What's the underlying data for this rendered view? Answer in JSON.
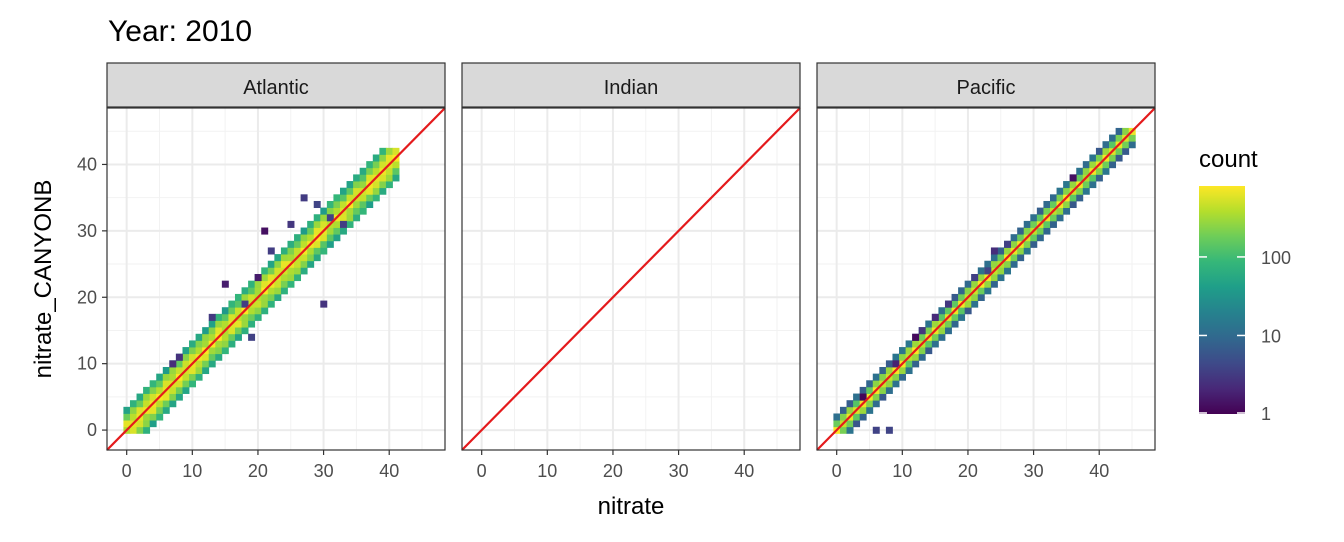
{
  "chart_data": {
    "type": "heatmap",
    "title": "Year: 2010",
    "xlabel": "nitrate",
    "ylabel": "nitrate_CANYONB",
    "xlim": [
      -3,
      48.5
    ],
    "ylim": [
      -3,
      48.5
    ],
    "xticks": [
      0,
      10,
      20,
      30,
      40
    ],
    "yticks": [
      0,
      10,
      20,
      30,
      40
    ],
    "reference_line": {
      "slope": 1,
      "intercept": 0,
      "color": "#e41a1c"
    },
    "grid": true,
    "facets": [
      {
        "name": "Atlantic",
        "bin_range": [
          -0.5,
          41.5
        ],
        "spread": 1.4,
        "outliers": [
          [
            27,
            35
          ],
          [
            29,
            34
          ],
          [
            22,
            27
          ],
          [
            20,
            23
          ],
          [
            15,
            22
          ],
          [
            18,
            19
          ],
          [
            21,
            30
          ],
          [
            31,
            32
          ],
          [
            33,
            31
          ],
          [
            25,
            31
          ],
          [
            13,
            17
          ],
          [
            8,
            11
          ],
          [
            7,
            10
          ],
          [
            19,
            14
          ],
          [
            30,
            19
          ]
        ]
      },
      {
        "name": "Indian",
        "bin_range": null,
        "spread": 0,
        "outliers": []
      },
      {
        "name": "Pacific",
        "bin_range": [
          -0.5,
          45
        ],
        "spread": 0.7,
        "outliers": [
          [
            6,
            0
          ],
          [
            8,
            0
          ],
          [
            24,
            27
          ],
          [
            21,
            23
          ],
          [
            23,
            24
          ],
          [
            17,
            19
          ],
          [
            15,
            17
          ],
          [
            13,
            15
          ],
          [
            12,
            14
          ],
          [
            9,
            10
          ],
          [
            4,
            5
          ],
          [
            26,
            28
          ],
          [
            36,
            38
          ]
        ]
      }
    ]
  },
  "legend": {
    "title": "count",
    "scale": "log10",
    "breaks": [
      {
        "value": 1,
        "label": "1"
      },
      {
        "value": 10,
        "label": "10"
      },
      {
        "value": 100,
        "label": "100"
      }
    ],
    "max": 800,
    "colors": [
      "#440154",
      "#482878",
      "#3E4A89",
      "#31688E",
      "#26828E",
      "#1F9E89",
      "#35B779",
      "#6DCD59",
      "#B4DE2C",
      "#FDE725"
    ]
  }
}
